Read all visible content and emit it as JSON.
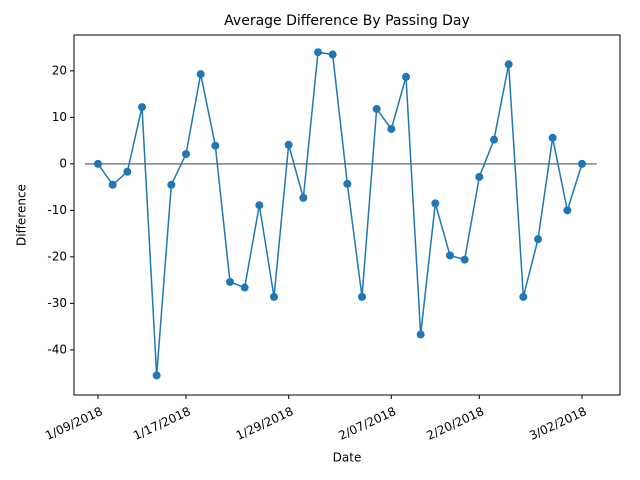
{
  "chart_data": {
    "type": "line",
    "title": "Average Difference By Passing Day",
    "x_label": "Date",
    "y_label": "Difference",
    "categories": [
      "1/09/2018",
      null,
      null,
      null,
      null,
      null,
      "1/17/2018",
      null,
      null,
      null,
      null,
      null,
      null,
      "1/29/2018",
      null,
      null,
      null,
      null,
      null,
      null,
      "2/07/2018",
      null,
      null,
      null,
      null,
      null,
      "2/20/2018",
      null,
      null,
      null,
      null,
      null,
      null,
      "3/02/2018"
    ],
    "series": [
      {
        "name": "Difference",
        "color": "#1f77b4",
        "values": [
          0,
          -4.5,
          -1.7,
          12.2,
          -45.5,
          -4.5,
          2.1,
          19.3,
          3.9,
          -25.4,
          -26.6,
          -8.9,
          -28.6,
          4.1,
          -7.3,
          24.0,
          23.5,
          -4.3,
          -28.6,
          11.8,
          7.5,
          18.7,
          -36.7,
          -8.5,
          -19.7,
          -20.6,
          -2.8,
          5.2,
          21.4,
          -28.6,
          -16.2,
          5.6,
          -10.0,
          0
        ]
      }
    ],
    "reference_line": {
      "y": 0,
      "color": "#808080"
    },
    "ylim": [
      -49.7,
      27.7
    ],
    "yticks": [
      -40,
      -30,
      -20,
      -10,
      0,
      10,
      20
    ],
    "grid": false
  }
}
